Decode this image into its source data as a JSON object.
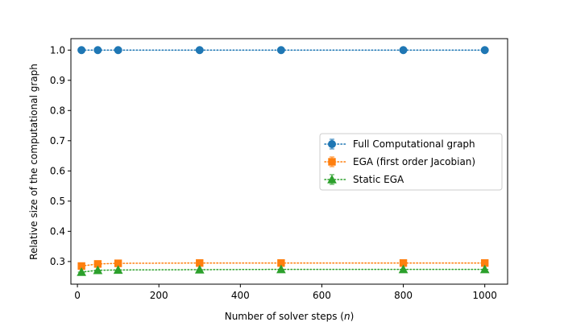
{
  "chart_data": {
    "type": "line",
    "title": "",
    "xlabel": "Number of solver steps (n)",
    "ylabel": "Relative size of the computational graph",
    "xlim": [
      -16,
      1056
    ],
    "ylim": [
      0.225,
      1.038
    ],
    "x_ticks": [
      0,
      200,
      400,
      600,
      800,
      1000
    ],
    "y_ticks": [
      0.3,
      0.4,
      0.5,
      0.6,
      0.7,
      0.8,
      0.9,
      1.0
    ],
    "x_tick_labels": [
      "0",
      "200",
      "400",
      "600",
      "800",
      "1000"
    ],
    "y_tick_labels": [
      "0.3",
      "0.4",
      "0.5",
      "0.6",
      "0.7",
      "0.8",
      "0.9",
      "1.0"
    ],
    "grid": false,
    "legend_position": "center-right",
    "x": [
      10,
      50,
      100,
      300,
      500,
      800,
      1000
    ],
    "series": [
      {
        "name": "Full Computational graph",
        "color": "#1f77b4",
        "marker": "circle",
        "line_style": "dotted",
        "values": [
          1.0,
          1.0,
          1.0,
          1.0,
          1.0,
          1.0,
          1.0
        ]
      },
      {
        "name": "EGA (first order Jacobian)",
        "color": "#ff7f0e",
        "marker": "square",
        "line_style": "dotted",
        "values": [
          0.285,
          0.292,
          0.294,
          0.295,
          0.295,
          0.295,
          0.295
        ]
      },
      {
        "name": "Static EGA",
        "color": "#2ca02c",
        "marker": "triangle",
        "line_style": "dotted",
        "values": [
          0.265,
          0.271,
          0.272,
          0.273,
          0.274,
          0.274,
          0.274
        ]
      }
    ]
  }
}
